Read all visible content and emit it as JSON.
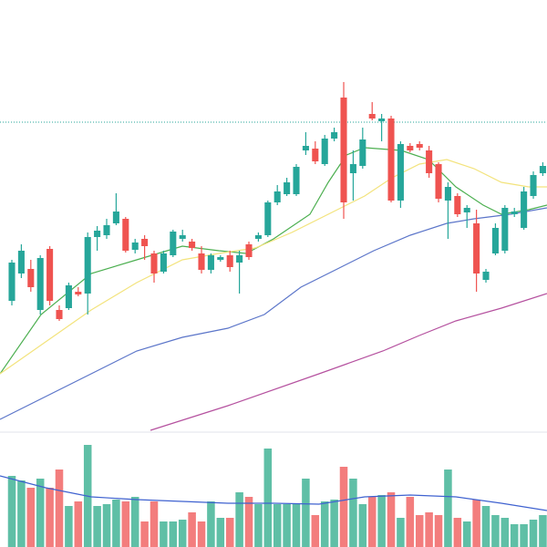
{
  "chart_data": [
    {
      "type": "candlestick",
      "x": [
        0,
        1,
        2,
        3,
        4,
        5,
        6,
        7,
        8,
        9,
        10,
        11,
        12,
        13,
        14,
        15,
        16,
        17,
        18,
        19,
        20,
        21,
        22,
        23,
        24,
        25,
        26,
        27,
        28,
        29,
        30,
        31,
        32,
        33,
        34,
        35,
        36,
        37,
        38,
        39,
        40,
        41,
        42,
        43,
        44,
        45,
        46,
        47,
        48,
        49,
        50,
        51,
        52,
        53,
        54,
        55,
        56
      ],
      "open": [
        270,
        300,
        305,
        260,
        327,
        260,
        262,
        280,
        278,
        340,
        342,
        355,
        360,
        326,
        338,
        322,
        302,
        320,
        338,
        335,
        322,
        304,
        315,
        320,
        312,
        332,
        338,
        342,
        378,
        387,
        387,
        435,
        437,
        420,
        448,
        493,
        410,
        418,
        475,
        467,
        470,
        380,
        440,
        442,
        435,
        420,
        380,
        385,
        367,
        355,
        293,
        322,
        325,
        365,
        350,
        385,
        410
      ],
      "high": [
        315,
        332,
        315,
        320,
        330,
        265,
        290,
        285,
        345,
        352,
        360,
        388,
        362,
        338,
        342,
        325,
        325,
        348,
        348,
        338,
        330,
        322,
        320,
        325,
        325,
        335,
        345,
        380,
        397,
        405,
        420,
        455,
        445,
        452,
        460,
        510,
        435,
        460,
        488,
        475,
        473,
        445,
        443,
        445,
        440,
        422,
        400,
        388,
        375,
        370,
        305,
        355,
        375,
        372,
        395,
        412,
        422
      ],
      "low": [
        265,
        295,
        280,
        255,
        265,
        248,
        260,
        275,
        255,
        325,
        338,
        353,
        323,
        322,
        315,
        290,
        300,
        318,
        335,
        325,
        300,
        300,
        313,
        302,
        278,
        315,
        335,
        340,
        375,
        385,
        385,
        430,
        420,
        418,
        445,
        360,
        380,
        415,
        468,
        445,
        378,
        372,
        433,
        435,
        405,
        378,
        338,
        362,
        350,
        280,
        290,
        320,
        322,
        362,
        348,
        382,
        407
      ],
      "close": [
        312,
        325,
        285,
        317,
        270,
        250,
        287,
        277,
        340,
        347,
        353,
        368,
        325,
        334,
        330,
        300,
        322,
        346,
        342,
        328,
        304,
        320,
        318,
        307,
        320,
        318,
        342,
        378,
        390,
        400,
        417,
        440,
        423,
        448,
        455,
        378,
        420,
        447,
        470,
        470,
        380,
        442,
        435,
        438,
        410,
        382,
        395,
        365,
        372,
        300,
        302,
        350,
        372,
        368,
        390,
        408,
        418
      ],
      "up_color": "#26a69a",
      "down_color": "#ef5350",
      "xlim": [
        -1.25,
        56.44
      ],
      "ylim": [
        0,
        600
      ],
      "lines": [
        {
          "color": "#4caf50",
          "x": [
            -1.25,
            3.08,
            8.37,
            13.17,
            17.98,
            21.83,
            24.71,
            27.6,
            31.44,
            33.37,
            35.29,
            37.21,
            41.06,
            43.94,
            46.83,
            49.71,
            51.63,
            54.52,
            56.44
          ],
          "values": [
            190,
            255,
            300,
            315,
            330,
            325,
            322,
            338,
            365,
            400,
            430,
            438,
            435,
            425,
            395,
            375,
            365,
            370,
            375
          ]
        },
        {
          "color": "#f3e37c",
          "x": [
            -1.25,
            3.56,
            8.37,
            13.17,
            17.98,
            21.83,
            25.67,
            29.52,
            33.37,
            37.21,
            40.1,
            42.98,
            45.87,
            48.75,
            51.63,
            54.52,
            56.44
          ],
          "values": [
            190,
            225,
            260,
            290,
            315,
            322,
            328,
            345,
            365,
            385,
            405,
            420,
            425,
            415,
            400,
            395,
            395
          ]
        },
        {
          "color": "#5b75c9",
          "x": [
            -1.25,
            3.56,
            8.37,
            13.17,
            17.98,
            22.79,
            26.63,
            30.48,
            34.33,
            38.17,
            42.02,
            45.87,
            48.75,
            52.6,
            56.44
          ],
          "values": [
            140,
            165,
            190,
            215,
            230,
            240,
            255,
            285,
            305,
            325,
            342,
            355,
            360,
            365,
            372
          ]
        },
        {
          "color": "#b5519f",
          "x": [
            14.62,
            22.79,
            32.4,
            39.13,
            42.98,
            46.83,
            51.63,
            56.44
          ],
          "values": [
            128,
            155,
            190,
            215,
            232,
            248,
            262,
            278
          ]
        }
      ],
      "hline": {
        "value": 466,
        "color": "#26a69a"
      }
    },
    {
      "type": "volume",
      "x": [
        0,
        1,
        2,
        3,
        4,
        5,
        6,
        7,
        8,
        9,
        10,
        11,
        12,
        13,
        14,
        15,
        16,
        17,
        18,
        19,
        20,
        21,
        22,
        23,
        24,
        25,
        26,
        27,
        28,
        29,
        30,
        31,
        32,
        33,
        34,
        35,
        36,
        37,
        38,
        39,
        40,
        41,
        42,
        43,
        44,
        45,
        46,
        47,
        48,
        49,
        50,
        51,
        52,
        53,
        54,
        55,
        56
      ],
      "values": [
        78,
        73,
        65,
        75,
        65,
        85,
        45,
        50,
        112,
        45,
        47,
        52,
        50,
        55,
        28,
        50,
        28,
        28,
        30,
        38,
        28,
        50,
        32,
        32,
        60,
        55,
        47,
        108,
        47,
        47,
        47,
        75,
        35,
        50,
        52,
        88,
        75,
        47,
        55,
        57,
        60,
        32,
        55,
        35,
        38,
        35,
        85,
        32,
        28,
        52,
        45,
        35,
        32,
        25,
        25,
        30,
        35
      ],
      "up_color": "#5fbfa6",
      "down_color": "#f37d7d",
      "xlim": [
        -1.25,
        56.44
      ],
      "ylim": [
        0,
        125
      ],
      "lines": [
        {
          "color": "#3f62d0",
          "x": [
            -1.25,
            3.56,
            8.37,
            13.17,
            17.98,
            22.79,
            27.6,
            32.4,
            37.21,
            42.02,
            46.83,
            51.63,
            56.44
          ],
          "values": [
            78,
            65,
            55,
            52,
            50,
            48,
            48,
            47,
            55,
            57,
            55,
            48,
            40
          ]
        }
      ]
    }
  ]
}
